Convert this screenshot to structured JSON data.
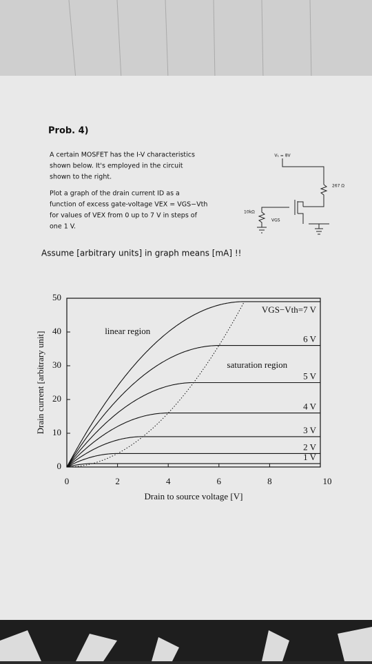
{
  "problem": {
    "title": "Prob. 4)",
    "lines": [
      "A certain MOSFET has the I-V characteristics",
      "shown below.  It's employed in the circuit",
      "shown to the right.",
      "Plot a graph of the drain current ID as a",
      "function of excess gate-voltage VEX = VGS−Vth",
      "for values of VEX from 0 up to 7 V in steps of",
      "one 1 V."
    ],
    "circuit": {
      "supply": "V₁ = 8V",
      "drain_resistor": "267 Ω",
      "gate_resistor": "10kΩ",
      "gate_label": "VGS"
    },
    "note": "Assume [arbitrary units] in graph means [mA] !!"
  },
  "chart_data": {
    "type": "line",
    "x_label": "Drain to source voltage [V]",
    "y_label": "Drain current [arbitrary unit]",
    "xlim": [
      0,
      10
    ],
    "ylim": [
      0,
      50
    ],
    "xticks": [
      0,
      2,
      4,
      6,
      8,
      10
    ],
    "yticks": [
      0,
      10,
      20,
      30,
      40,
      50
    ],
    "annotations": [
      "linear region",
      "saturation region"
    ],
    "color": "#111111",
    "series": [
      {
        "name": "1 V",
        "values": [
          1
        ]
      },
      {
        "name": "2 V",
        "values": [
          4
        ]
      },
      {
        "name": "3 V",
        "values": [
          9
        ]
      },
      {
        "name": "4 V",
        "values": [
          16
        ]
      },
      {
        "name": "5 V",
        "values": [
          25
        ]
      },
      {
        "name": "6 V",
        "values": [
          36
        ]
      },
      {
        "name": "VGS−Vth=7 V",
        "values": [
          49
        ]
      }
    ]
  }
}
